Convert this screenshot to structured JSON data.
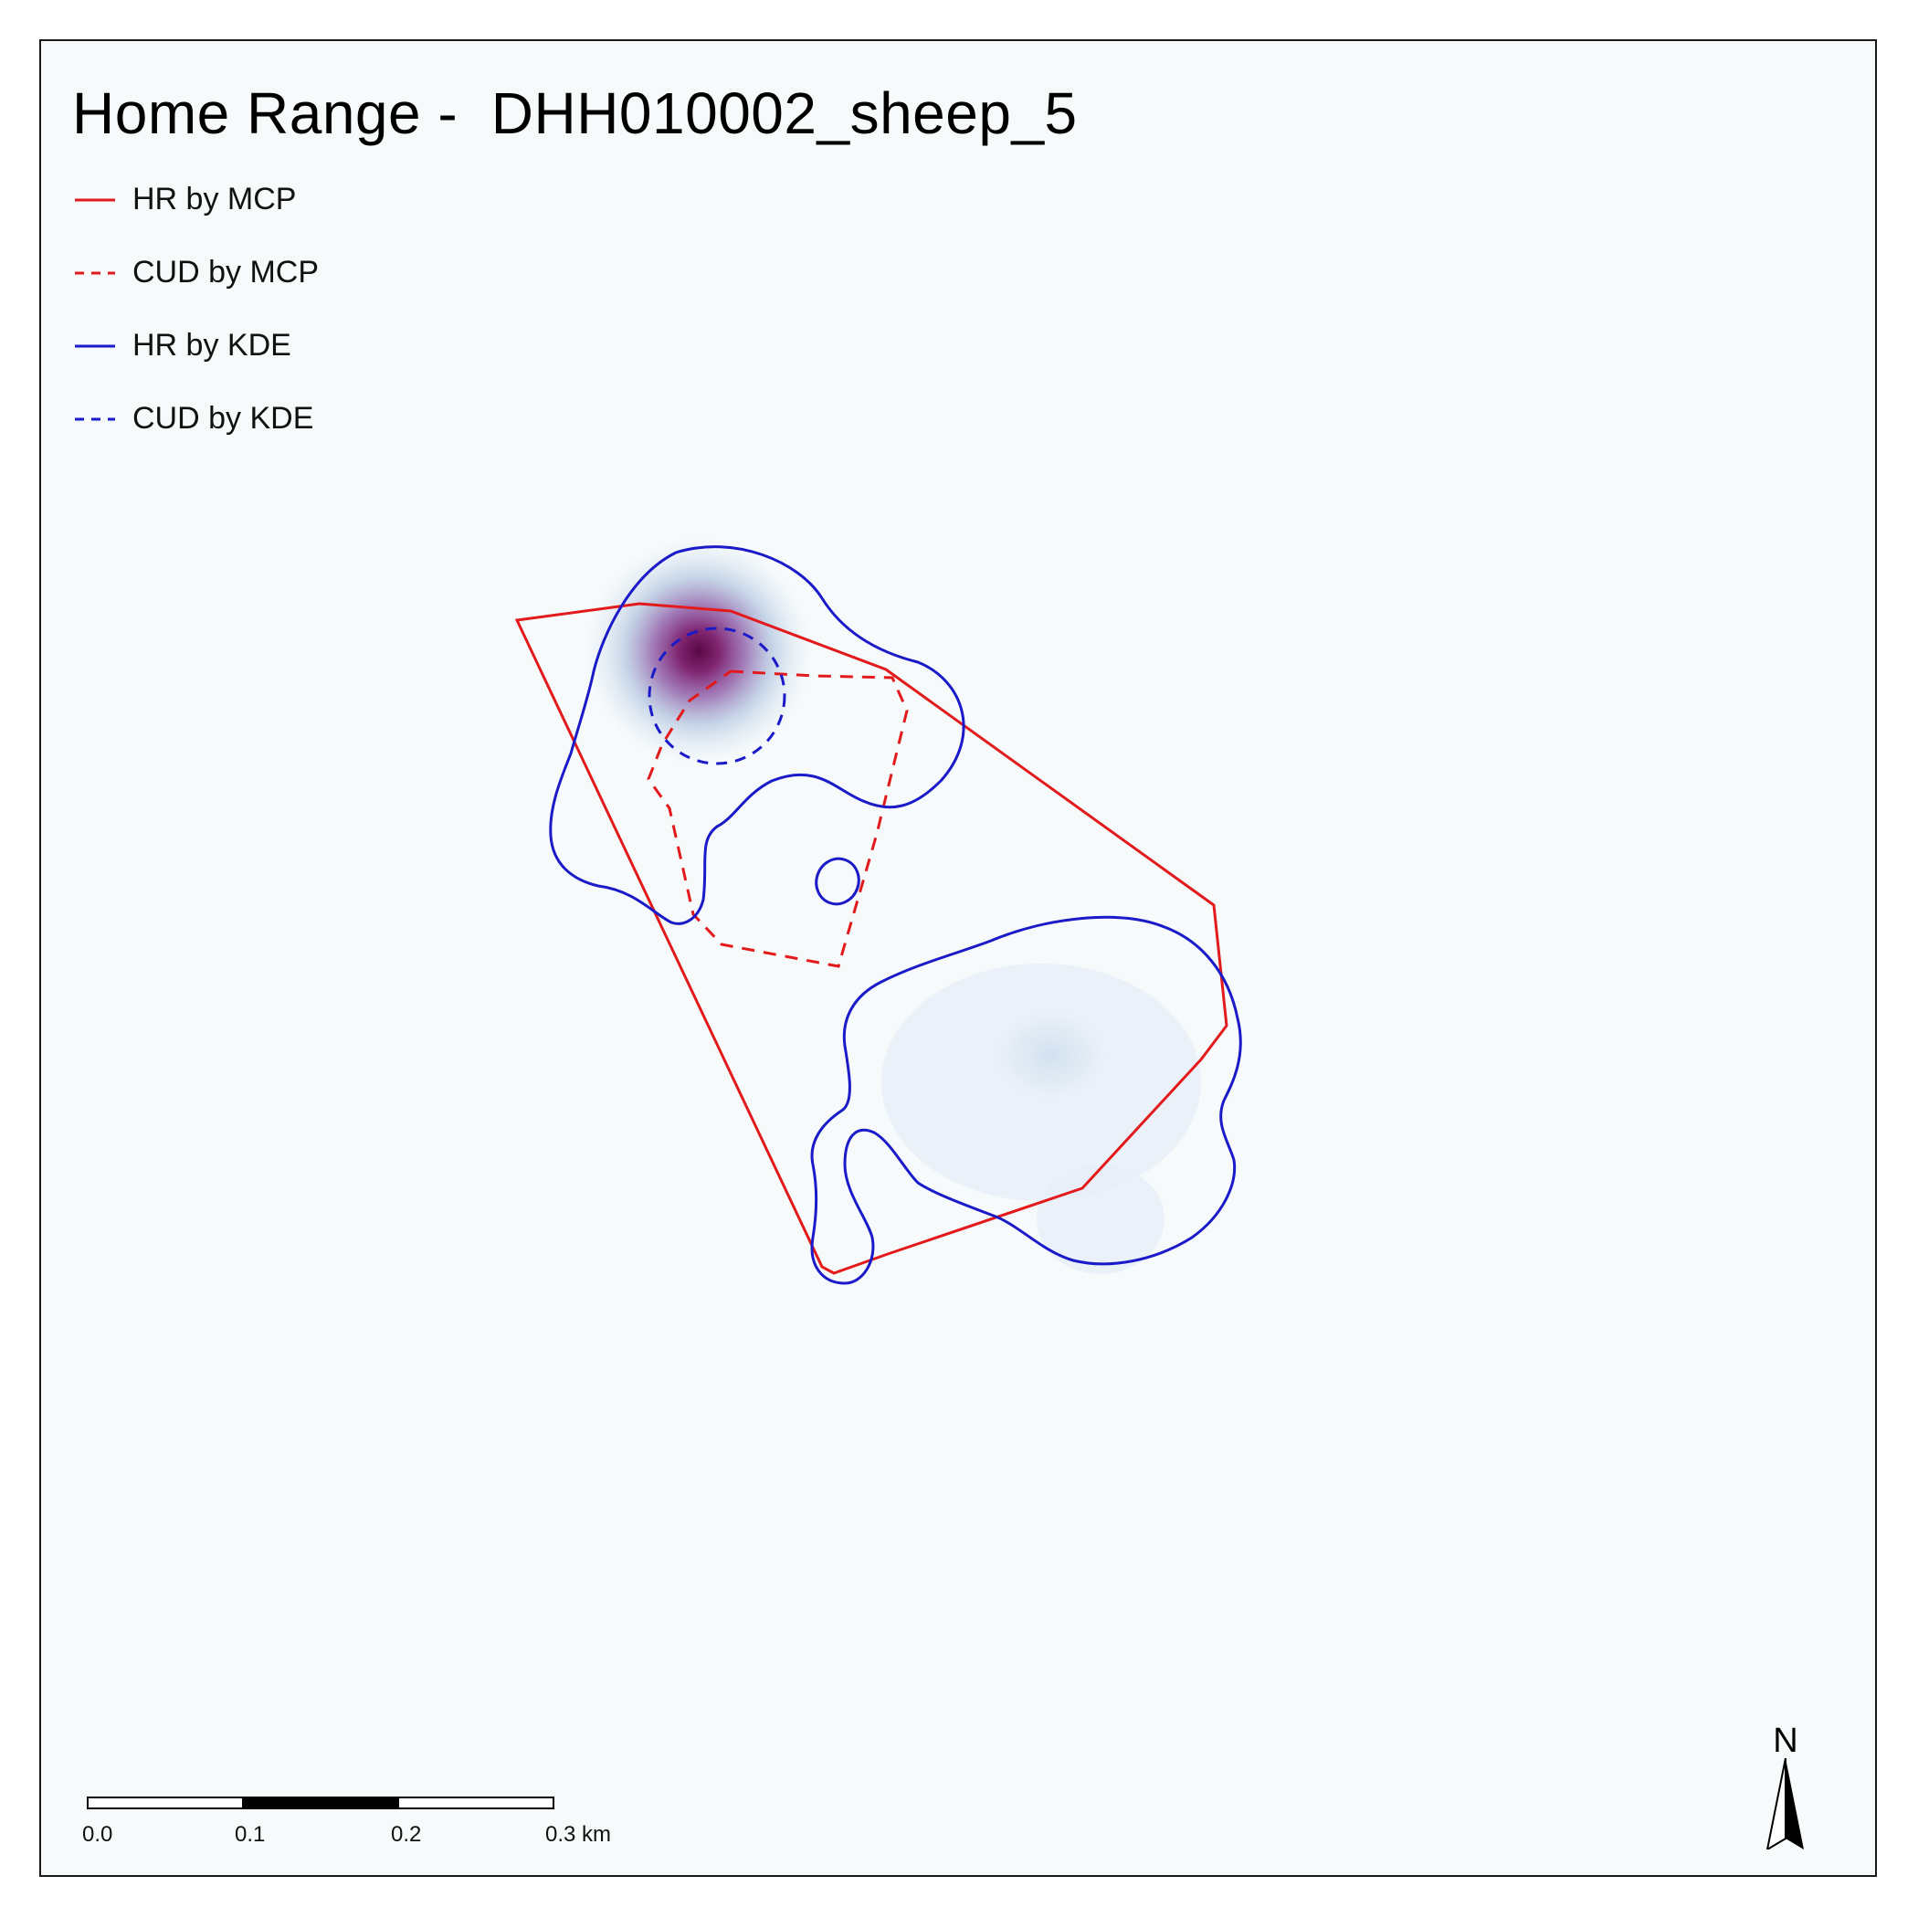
{
  "map": {
    "title": "Home Range -  DHH010002_sheep_5",
    "legend": [
      {
        "label": "HR by MCP",
        "color": "#e31a1c",
        "style": "solid"
      },
      {
        "label": "CUD by MCP",
        "color": "#e31a1c",
        "style": "dashed"
      },
      {
        "label": "HR by KDE",
        "color": "#1a1ac8",
        "style": "solid"
      },
      {
        "label": "CUD by KDE",
        "color": "#1a1ac8",
        "style": "dashed"
      }
    ],
    "scale_bar": {
      "ticks": [
        "0.0",
        "0.1",
        "0.2",
        "0.3 km"
      ],
      "unit": "km"
    },
    "north_arrow": {
      "label": "N"
    },
    "colors": {
      "background": "#f6fafb",
      "mcp": "#e31a1c",
      "kde": "#1a1ac8",
      "density_high": "#6a0a55",
      "density_low": "#dbe6f1"
    }
  }
}
